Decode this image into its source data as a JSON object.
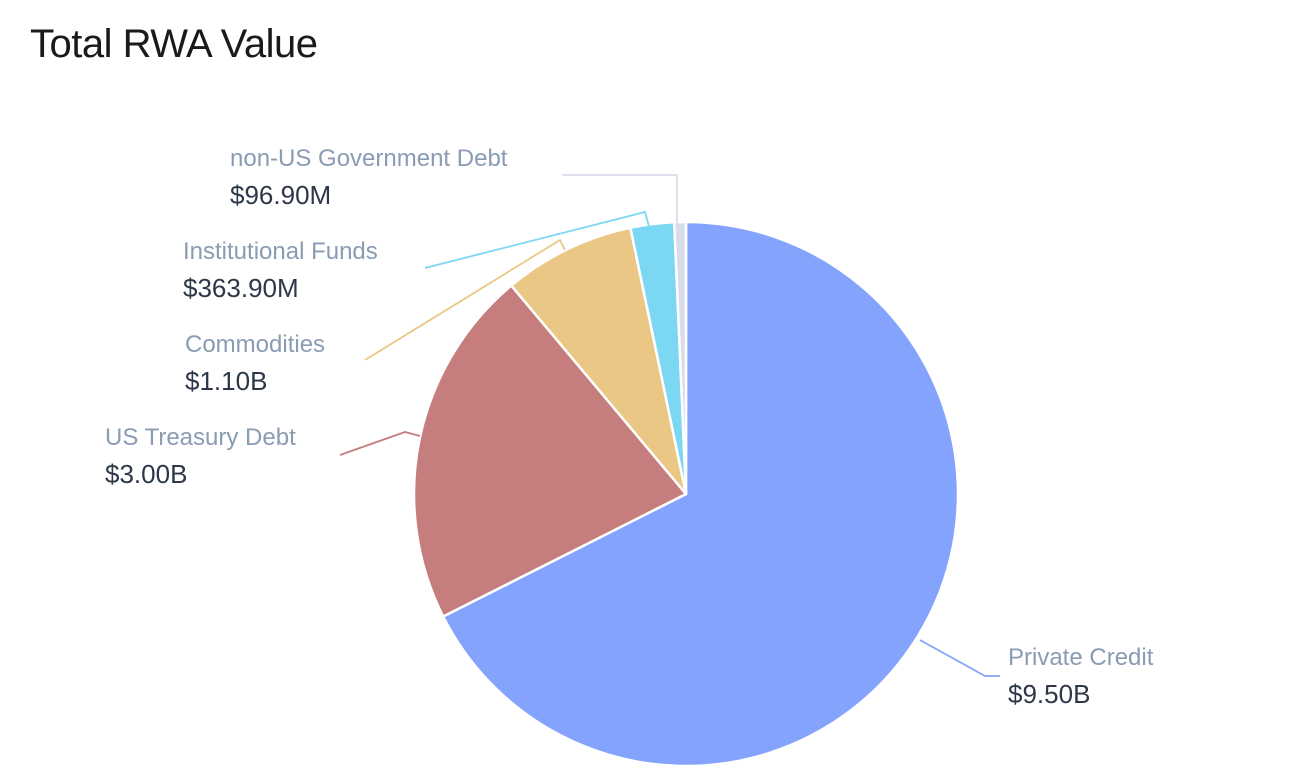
{
  "chart_data": {
    "type": "pie",
    "title": "Total RWA Value",
    "slices": [
      {
        "label": "Private Credit",
        "value": 9.5,
        "display": "$9.50B",
        "color": "#84a3fc"
      },
      {
        "label": "US Treasury Debt",
        "value": 3.0,
        "display": "$3.00B",
        "color": "#c67d7d"
      },
      {
        "label": "Commodities",
        "value": 1.1,
        "display": "$1.10B",
        "color": "#eac784"
      },
      {
        "label": "Institutional Funds",
        "value": 0.3639,
        "display": "$363.90M",
        "color": "#7cd7f3"
      },
      {
        "label": "non-US Government Debt",
        "value": 0.0969,
        "display": "$96.90M",
        "color": "#d8dcea"
      }
    ],
    "legend": "none",
    "labels": "outside-with-leader-lines"
  }
}
